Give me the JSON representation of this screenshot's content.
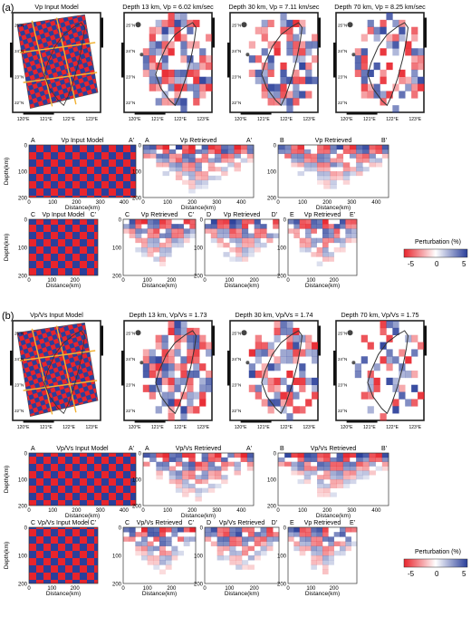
{
  "panel_a": {
    "label": "(a)",
    "maps": [
      {
        "title": "Vp Input Model",
        "kind": "input"
      },
      {
        "title": "Depth 13 km, Vp = 6.02 km/sec",
        "kind": "ret1"
      },
      {
        "title": "Depth 30 km, Vp = 7.11 km/sec",
        "kind": "ret2"
      },
      {
        "title": "Depth 70 km, Vp = 8.25 km/sec",
        "kind": "ret3"
      }
    ],
    "sections_row1": [
      {
        "title": "Vp Input Model",
        "left": "A",
        "right": "A'",
        "xticks": [
          "0",
          "100",
          "200",
          "300",
          "400"
        ],
        "kind": "input"
      },
      {
        "title": "Vp Retrieved",
        "left": "A",
        "right": "A'",
        "xticks": [
          "0",
          "100",
          "200",
          "300",
          "400"
        ],
        "kind": "ret"
      },
      {
        "title": "Vp Retrieved",
        "left": "B",
        "right": "B'",
        "xticks": [
          "0",
          "100",
          "200",
          "300",
          "400"
        ],
        "kind": "ret"
      }
    ],
    "sections_row2": [
      {
        "title": "Vp Input Model",
        "left": "C",
        "right": "C'",
        "xticks": [
          "0",
          "100",
          "200"
        ],
        "kind": "input"
      },
      {
        "title": "Vp Retrieved",
        "left": "C",
        "right": "C'",
        "xticks": [
          "0",
          "100",
          "200"
        ],
        "kind": "ret"
      },
      {
        "title": "Vp Retrieved",
        "left": "D",
        "right": "D'",
        "xticks": [
          "0",
          "100",
          "200"
        ],
        "kind": "ret"
      },
      {
        "title": "Vp Retrieved",
        "left": "E",
        "right": "E'",
        "xticks": [
          "0",
          "100",
          "200"
        ],
        "kind": "ret"
      }
    ]
  },
  "panel_b": {
    "label": "(b)",
    "maps": [
      {
        "title": "Vp/Vs Input Model",
        "kind": "input"
      },
      {
        "title": "Depth 13 km, Vp/Vs = 1.73",
        "kind": "ret1"
      },
      {
        "title": "Depth 30 km, Vp/Vs = 1.74",
        "kind": "ret2"
      },
      {
        "title": "Depth 70 km, Vp/Vs = 1.75",
        "kind": "ret3"
      }
    ],
    "sections_row1": [
      {
        "title": "Vp/Vs Input Model",
        "left": "A",
        "right": "A'",
        "xticks": [
          "0",
          "100",
          "200",
          "300",
          "400"
        ],
        "kind": "input"
      },
      {
        "title": "Vp/Vs Retrieved",
        "left": "A",
        "right": "A'",
        "xticks": [
          "0",
          "100",
          "200",
          "300",
          "400"
        ],
        "kind": "ret"
      },
      {
        "title": "Vp/Vs Retrieved",
        "left": "B",
        "right": "B'",
        "xticks": [
          "0",
          "100",
          "200",
          "300",
          "400"
        ],
        "kind": "ret"
      }
    ],
    "sections_row2": [
      {
        "title": "Vp/Vs Input Model",
        "left": "C",
        "right": "C'",
        "xticks": [
          "0",
          "100",
          "200"
        ],
        "kind": "input"
      },
      {
        "title": "Vp/Vs Retrieved",
        "left": "C",
        "right": "C'",
        "xticks": [
          "0",
          "100",
          "200"
        ],
        "kind": "ret"
      },
      {
        "title": "Vp/Vs Retrieved",
        "left": "D",
        "right": "D'",
        "xticks": [
          "0",
          "100",
          "200"
        ],
        "kind": "ret"
      },
      {
        "title": "Vp Retrieved",
        "left": "E",
        "right": "E'",
        "xticks": [
          "0",
          "100",
          "200"
        ],
        "kind": "ret"
      }
    ]
  },
  "axes": {
    "lon_ticks": [
      "120°E",
      "121°E",
      "122°E",
      "123°E"
    ],
    "lat_ticks": [
      "25°N",
      "24°N",
      "23°N",
      "22°N"
    ],
    "depth_label": "Depth(km)",
    "depth_ticks": [
      "0",
      "100",
      "200"
    ],
    "distance_label": "Distance(km)"
  },
  "colorbar": {
    "title": "Perturbation (%)",
    "ticks": [
      "-5",
      "0",
      "5"
    ],
    "colors": {
      "negative": "#e8242c",
      "neutral": "#ffffff",
      "positive": "#2a3f9a"
    }
  }
}
